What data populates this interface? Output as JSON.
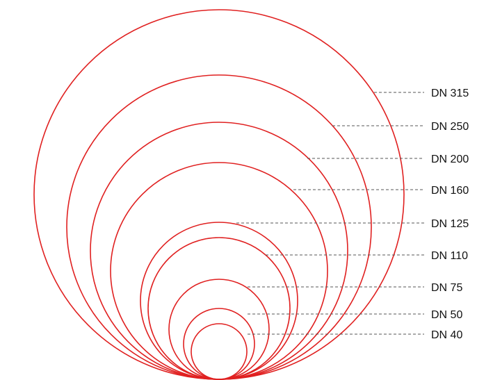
{
  "diagram": {
    "stroke_color": "#e02020",
    "leader_color": "#555555",
    "items": [
      {
        "label": "DN 315"
      },
      {
        "label": "DN 250"
      },
      {
        "label": "DN 200"
      },
      {
        "label": "DN 160"
      },
      {
        "label": "DN 125"
      },
      {
        "label": "DN 110"
      },
      {
        "label": "DN 75"
      },
      {
        "label": "DN 50"
      },
      {
        "label": "DN 40"
      }
    ]
  }
}
